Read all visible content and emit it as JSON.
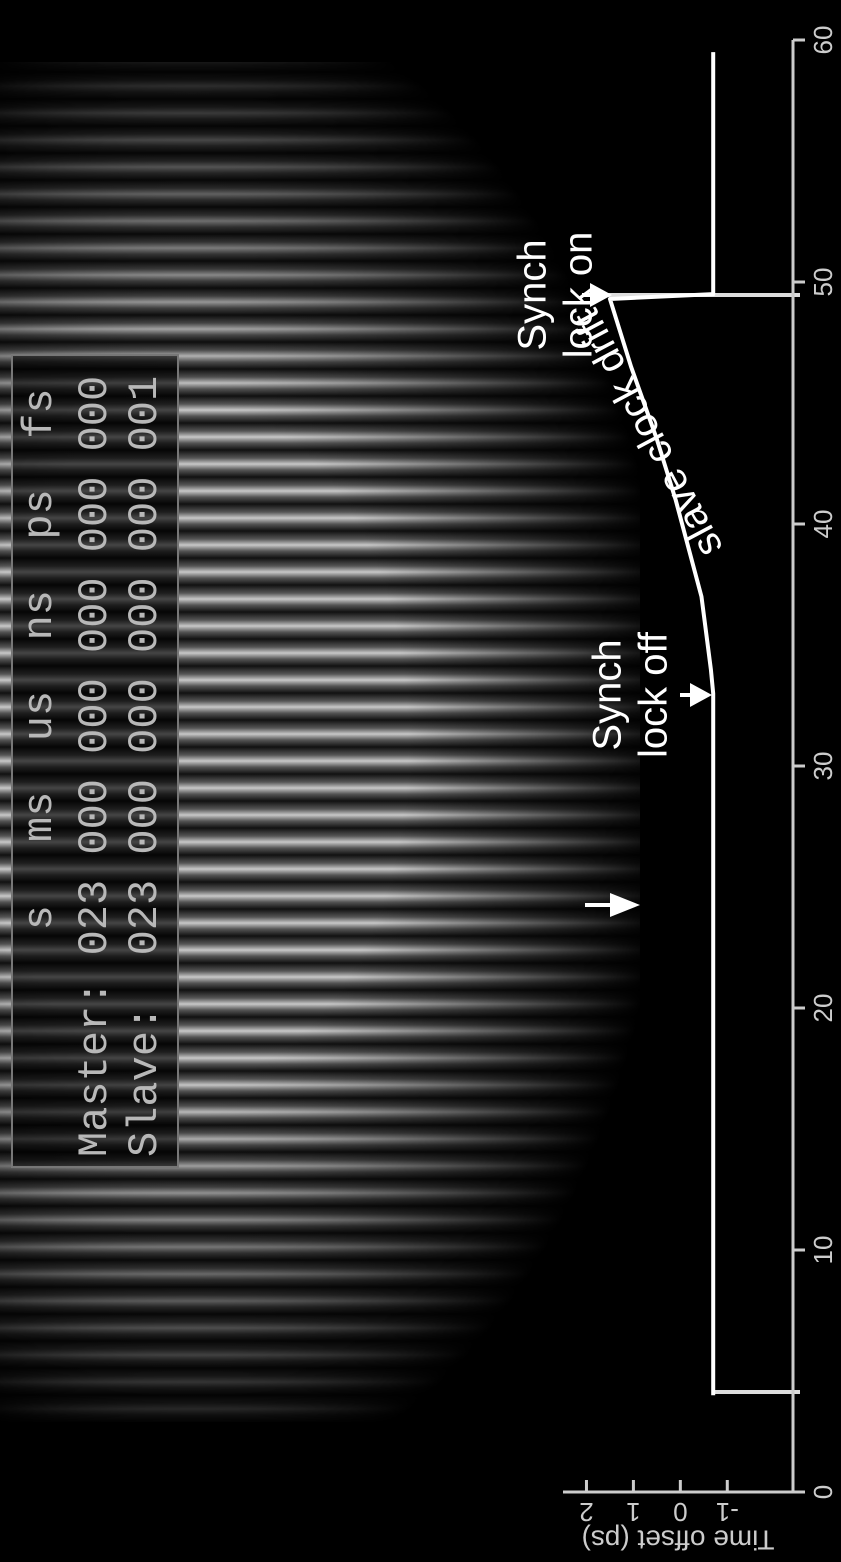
{
  "counter": {
    "headers": [
      "s",
      "ms",
      "us",
      "ns",
      "ps",
      "fs"
    ],
    "rows": [
      {
        "label": "Master:",
        "values": [
          "023",
          "000",
          "000",
          "000",
          "000",
          "000"
        ]
      },
      {
        "label": "Slave:",
        "values": [
          "023",
          "000",
          "000",
          "000",
          "000",
          "001"
        ]
      }
    ]
  },
  "chart_data": {
    "type": "line",
    "y_label": "Time offset (ps)",
    "x": [
      4,
      33,
      34,
      37,
      41,
      43.5,
      46.5,
      49.3,
      49.5,
      59.5
    ],
    "series": [
      {
        "color": "#ffffff",
        "values": [
          -0.7,
          -0.7,
          -0.65,
          -0.45,
          0.1,
          0.5,
          1.05,
          1.5,
          -0.7,
          -0.7
        ]
      }
    ],
    "xlim": [
      0,
      60
    ],
    "xticks": [
      0,
      10,
      20,
      30,
      40,
      50,
      60
    ],
    "ylim": [
      -2.4,
      2.5
    ],
    "yticks": [
      -1,
      0,
      1,
      2
    ],
    "annotations": [
      {
        "lines": [
          "Synch",
          "lock off"
        ]
      },
      {
        "lines": [
          "Synch",
          "lock on"
        ]
      },
      {
        "lines": [
          "slave clock drift"
        ]
      }
    ]
  }
}
